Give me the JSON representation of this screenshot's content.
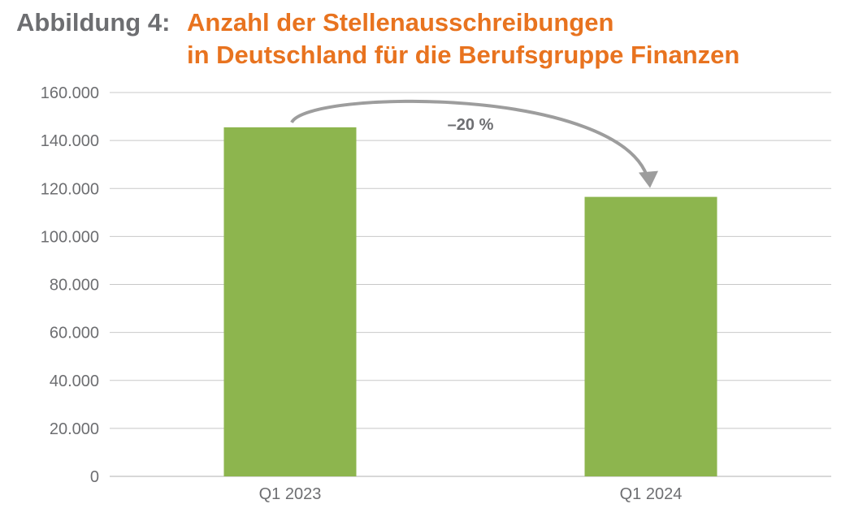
{
  "title": {
    "prefix": "Abbildung 4:",
    "line1": "Anzahl der Stellenausschreibungen",
    "line2": "in Deutschland für die Berufsgruppe Finanzen"
  },
  "colors": {
    "bar": "#8db54e",
    "title_accent": "#e8731f",
    "title_prefix": "#6d6e71",
    "grid": "#c8c8c8",
    "arrow": "#9d9d9d"
  },
  "chart_data": {
    "type": "bar",
    "categories": [
      "Q1 2023",
      "Q1 2024"
    ],
    "values": [
      145500,
      116500
    ],
    "ylim": [
      0,
      160000
    ],
    "yticks": [
      0,
      20000,
      40000,
      60000,
      80000,
      100000,
      120000,
      140000,
      160000
    ],
    "ytick_labels": [
      "0",
      "20.000",
      "40.000",
      "60.000",
      "80.000",
      "100.000",
      "120.000",
      "140.000",
      "160.000"
    ],
    "grid": true,
    "annotation": "–20 %"
  }
}
